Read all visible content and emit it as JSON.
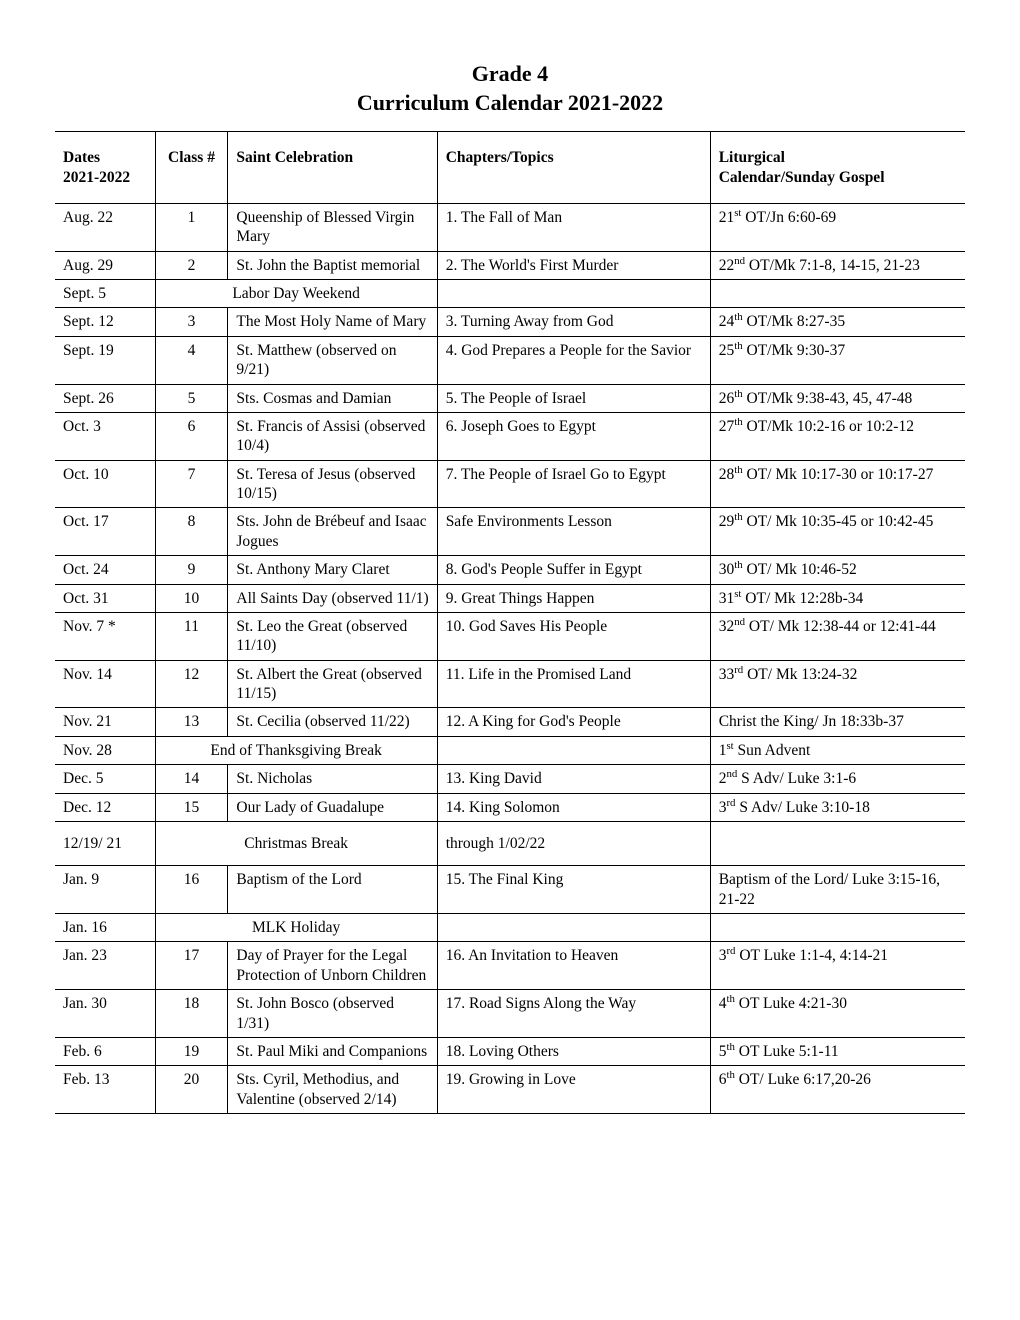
{
  "title_line1": "Grade 4",
  "title_line2": "Curriculum Calendar 2021-2022",
  "columns": {
    "dates_l1": "Dates",
    "dates_l2": "2021-2022",
    "class": "Class #",
    "saint": "Saint Celebration",
    "chapters": "Chapters/Topics",
    "liturgical_l1": "Liturgical",
    "liturgical_l2": "Calendar/Sunday Gospel"
  },
  "col_widths": {
    "dates": "11%",
    "class": "8%",
    "saint": "23%",
    "chapters": "30%",
    "liturgical": "28%"
  },
  "rows": [
    {
      "date": "Aug. 22",
      "class": "1",
      "saint": "Queenship of Blessed Virgin Mary",
      "chapter": "1. The Fall of Man",
      "lit_pre": "21",
      "lit_ord": "st",
      "lit_post": " OT/Jn 6:60-69"
    },
    {
      "date": "Aug. 29",
      "class": "2",
      "saint": "St. John the Baptist memorial",
      "chapter": "2. The World's First Murder",
      "lit_pre": "22",
      "lit_ord": "nd",
      "lit_post": " OT/Mk 7:1-8, 14-15, 21-23"
    },
    {
      "date": "Sept. 5",
      "span_saint": "Labor Day Weekend",
      "chapter": "",
      "lit_pre": "",
      "lit_ord": "",
      "lit_post": ""
    },
    {
      "date": "Sept. 12",
      "class": "3",
      "saint": "The Most Holy Name of Mary",
      "chapter": "3. Turning Away from God",
      "lit_pre": "24",
      "lit_ord": "th",
      "lit_post": " OT/Mk 8:27-35"
    },
    {
      "date": "Sept. 19",
      "class": "4",
      "saint": "St. Matthew (observed on 9/21)",
      "chapter": "4. God Prepares a People for the Savior",
      "lit_pre": "25",
      "lit_ord": "th",
      "lit_post": " OT/Mk 9:30-37"
    },
    {
      "date": "Sept. 26",
      "class": "5",
      "saint": "Sts. Cosmas and Damian",
      "chapter": "5. The People of Israel",
      "lit_pre": "26",
      "lit_ord": "th",
      "lit_post": " OT/Mk 9:38-43, 45, 47-48"
    },
    {
      "date": "Oct. 3",
      "class": "6",
      "saint": "St. Francis of Assisi (observed 10/4)",
      "chapter": "6. Joseph Goes to Egypt",
      "lit_pre": "27",
      "lit_ord": "th",
      "lit_post": " OT/Mk 10:2-16 or 10:2-12"
    },
    {
      "date": "Oct. 10",
      "class": "7",
      "saint": "St. Teresa of Jesus (observed 10/15)",
      "chapter": "7. The People of Israel Go to Egypt",
      "lit_pre": "28",
      "lit_ord": "th",
      "lit_post": " OT/ Mk 10:17-30 or 10:17-27"
    },
    {
      "date": "Oct. 17",
      "class": "8",
      "saint": "Sts. John de Brébeuf and Isaac Jogues",
      "chapter": "Safe Environments Lesson",
      "lit_pre": "29",
      "lit_ord": "th",
      "lit_post": " OT/ Mk 10:35-45 or 10:42-45"
    },
    {
      "date": "Oct. 24",
      "class": "9",
      "saint": "St. Anthony Mary Claret",
      "chapter": "8. God's People Suffer in Egypt",
      "lit_pre": "30",
      "lit_ord": "th",
      "lit_post": " OT/ Mk 10:46-52"
    },
    {
      "date": "Oct. 31",
      "class": "10",
      "saint": "All Saints Day (observed 11/1)",
      "chapter": "9. Great Things Happen",
      "lit_pre": "31",
      "lit_ord": "st",
      "lit_post": " OT/ Mk 12:28b-34"
    },
    {
      "date": "Nov. 7 *",
      "class": "11",
      "saint": "St. Leo the Great (observed 11/10)",
      "chapter": "10. God Saves His People",
      "lit_pre": "32",
      "lit_ord": "nd",
      "lit_post": " OT/ Mk 12:38-44 or 12:41-44"
    },
    {
      "date": "Nov. 14",
      "class": "12",
      "saint": "St. Albert the Great (observed 11/15)",
      "chapter": "11. Life in the Promised Land",
      "lit_pre": "33",
      "lit_ord": "rd",
      "lit_post": " OT/ Mk 13:24-32"
    },
    {
      "date": "Nov. 21",
      "class": "13",
      "saint": "St. Cecilia (observed 11/22)",
      "chapter": "12. A King for God's People",
      "lit_pre": "",
      "lit_ord": "",
      "lit_post": "Christ the King/ Jn 18:33b-37"
    },
    {
      "date": "Nov. 28",
      "span_saint": "End of Thanksgiving Break",
      "chapter": "",
      "lit_pre": "1",
      "lit_ord": "st",
      "lit_post": " Sun Advent"
    },
    {
      "date": "Dec. 5",
      "class": "14",
      "saint": "St. Nicholas",
      "chapter": "13. King David",
      "lit_pre": "2",
      "lit_ord": "nd",
      "lit_post": " S Adv/ Luke 3:1-6"
    },
    {
      "date": "Dec. 12",
      "class": "15",
      "saint": "Our Lady of Guadalupe",
      "chapter": "14. King Solomon",
      "lit_pre": "3",
      "lit_ord": "rd",
      "lit_post": " S Adv/ Luke 3:10-18"
    },
    {
      "date": "12/19/ 21",
      "span_saint": "Christmas Break",
      "chapter": "through 1/02/22",
      "lit_pre": "",
      "lit_ord": "",
      "lit_post": "",
      "pad": true
    },
    {
      "date": "Jan. 9",
      "class": "16",
      "saint": "Baptism of the Lord",
      "chapter": "15. The Final King",
      "lit_pre": "",
      "lit_ord": "",
      "lit_post": "Baptism of the Lord/ Luke 3:15-16, 21-22"
    },
    {
      "date": "Jan. 16",
      "span_saint": "MLK Holiday",
      "chapter": "",
      "lit_pre": "",
      "lit_ord": "",
      "lit_post": ""
    },
    {
      "date": "Jan. 23",
      "class": "17",
      "saint": "Day of Prayer for the Legal Protection of Unborn Children",
      "chapter": "16. An Invitation to Heaven",
      "lit_pre": "3",
      "lit_ord": "rd",
      "lit_post": " OT Luke 1:1-4, 4:14-21"
    },
    {
      "date": "Jan. 30",
      "class": "18",
      "saint": "St. John Bosco (observed 1/31)",
      "chapter": "17. Road Signs Along the Way",
      "lit_pre": "4",
      "lit_ord": "th",
      "lit_post": " OT Luke 4:21-30"
    },
    {
      "date": "Feb. 6",
      "class": "19",
      "saint": "St. Paul Miki and Companions",
      "chapter": "18. Loving Others",
      "lit_pre": "5",
      "lit_ord": "th",
      "lit_post": " OT Luke 5:1-11"
    },
    {
      "date": "Feb. 13",
      "class": "20",
      "saint": "Sts. Cyril, Methodius, and Valentine (observed 2/14)",
      "chapter": "19. Growing in Love",
      "lit_pre": "6",
      "lit_ord": "th",
      "lit_post": " OT/ Luke 6:17,20-26"
    }
  ]
}
